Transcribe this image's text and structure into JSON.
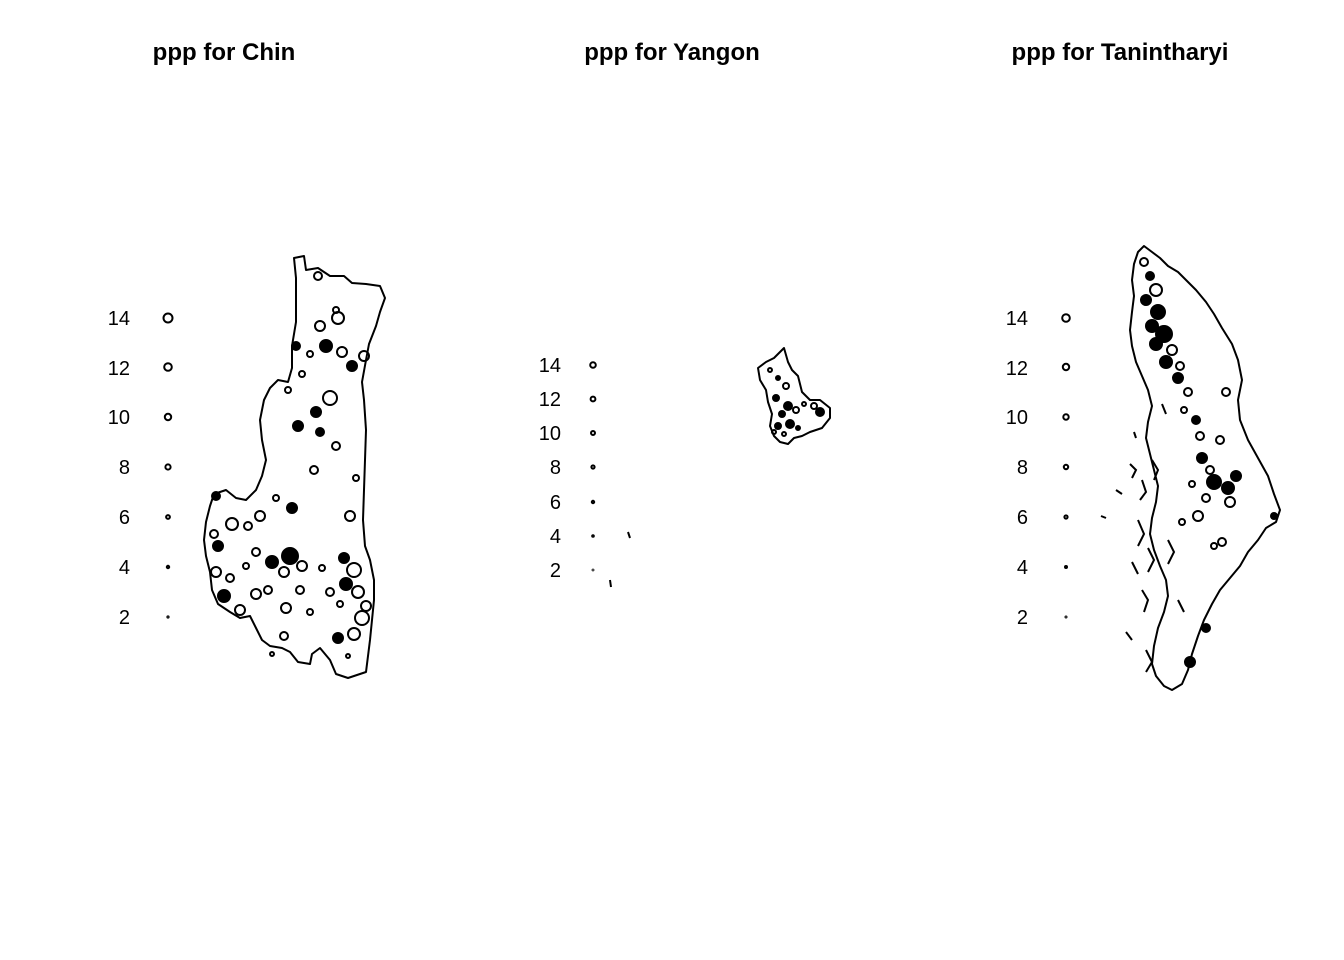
{
  "chart_data": [
    {
      "type": "scatter",
      "title": "ppp for Chin",
      "legend_labels": [
        "14",
        "12",
        "10",
        "8",
        "6",
        "4",
        "2"
      ]
    },
    {
      "type": "scatter",
      "title": "ppp for Yangon",
      "legend_labels": [
        "14",
        "12",
        "10",
        "8",
        "6",
        "4",
        "2"
      ]
    },
    {
      "type": "scatter",
      "title": "ppp for Tanintharyi",
      "legend_labels": [
        "14",
        "12",
        "10",
        "8",
        "6",
        "4",
        "2"
      ]
    }
  ],
  "colors": {
    "ink": "#000000",
    "background": "#ffffff"
  }
}
